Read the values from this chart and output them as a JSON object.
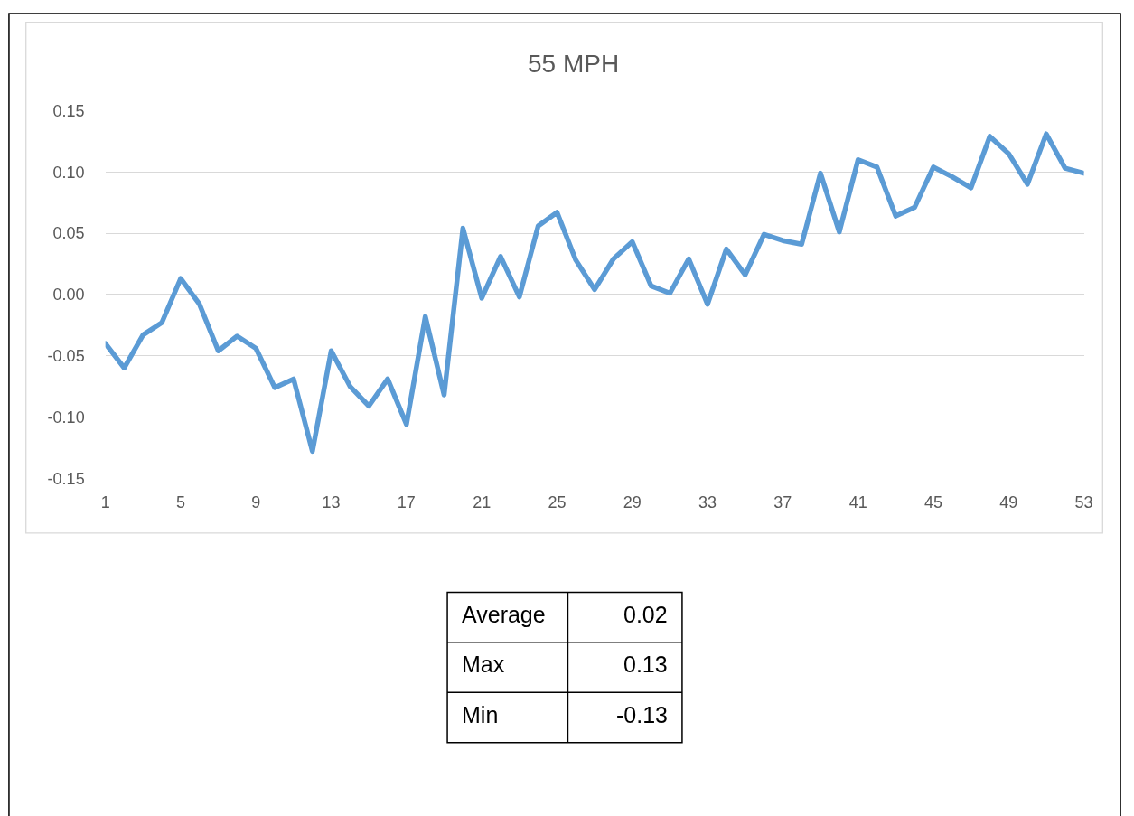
{
  "chart_data": [
    {
      "type": "line",
      "title": "55 MPH",
      "categories": [
        "1",
        null,
        null,
        null,
        "5",
        null,
        null,
        null,
        "9",
        null,
        null,
        null,
        "13",
        null,
        null,
        null,
        "17",
        null,
        null,
        null,
        "21",
        null,
        null,
        null,
        "25",
        null,
        null,
        null,
        "29",
        null,
        null,
        null,
        "33",
        null,
        null,
        null,
        "37",
        null,
        null,
        null,
        "41",
        null,
        null,
        null,
        "45",
        null,
        null,
        null,
        "49",
        null,
        null,
        null,
        "53"
      ],
      "series": [
        {
          "color": "#5b9bd5",
          "values": [
            -0.04,
            -0.06,
            -0.033,
            -0.023,
            0.013,
            -0.008,
            -0.046,
            -0.034,
            -0.044,
            -0.076,
            -0.069,
            -0.128,
            -0.046,
            -0.075,
            -0.091,
            -0.069,
            -0.106,
            -0.018,
            -0.082,
            0.054,
            -0.003,
            0.031,
            -0.002,
            0.056,
            0.067,
            0.028,
            0.004,
            0.029,
            0.043,
            0.007,
            0.001,
            0.029,
            -0.008,
            0.037,
            0.016,
            0.049,
            0.044,
            0.041,
            0.099,
            0.051,
            0.11,
            0.104,
            0.064,
            0.071,
            0.104,
            0.096,
            0.087,
            0.129,
            0.115,
            0.09,
            0.131,
            0.103,
            0.099
          ]
        }
      ],
      "ylim": [
        -0.15,
        0.15
      ],
      "yticks": [
        -0.15,
        {
          "value": -0.1,
          "label": "-0.10"
        },
        -0.05,
        {
          "value": 0,
          "label": "0.00"
        },
        0.05,
        {
          "value": 0.1,
          "label": "0.10"
        },
        0.15
      ],
      "grid": "y"
    },
    {
      "type": "other",
      "categories": [
        "Average",
        "Max",
        "Min"
      ],
      "values": [
        0.02,
        0.13,
        -0.13
      ],
      "data_labels": true
    }
  ]
}
